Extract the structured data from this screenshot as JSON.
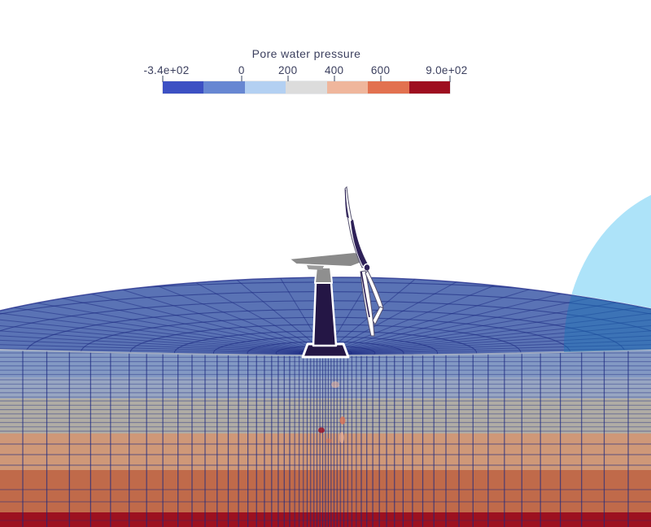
{
  "viewport": {
    "description": "3D finite-element model of a wind turbine on layered soil domain",
    "background_color": "#ffffff"
  },
  "colorbar": {
    "title": "Pore water pressure",
    "tick_labels": [
      "-3.4e+02",
      "0",
      "200",
      "400",
      "600",
      "9.0e+02"
    ],
    "tick_values": [
      -340,
      0,
      200,
      400,
      600,
      900
    ],
    "range": [
      -340,
      900
    ],
    "segments": [
      "#3c50c3",
      "#6787d2",
      "#b3d0f2",
      "#dcdcdc",
      "#efb69c",
      "#e2714f",
      "#9e0e20"
    ],
    "text_color": "#3b3f5e",
    "tick_color": "#9aa0ad"
  },
  "model": {
    "surface_color": "#5a73b5",
    "mesh_line_color": "#1b2880",
    "rim_line_color": "#aeb6c6",
    "layers": [
      {
        "name": "soil-layer-1a",
        "color": "#8399c4",
        "from": 431,
        "to": 464,
        "striped": true
      },
      {
        "name": "soil-layer-1b",
        "color": "#98a6c2",
        "from": 464,
        "to": 490,
        "striped": true
      },
      {
        "name": "soil-layer-2",
        "color": "#b1ada5",
        "from": 490,
        "to": 533,
        "striped": true
      },
      {
        "name": "soil-layer-3",
        "color": "#cf9878",
        "from": 533,
        "to": 578,
        "striped": false
      },
      {
        "name": "soil-layer-4",
        "color": "#c06a4a",
        "from": 578,
        "to": 630,
        "striped": false
      },
      {
        "name": "soil-layer-5",
        "color": "#9c1120",
        "from": 630,
        "to": 648,
        "striped": false
      }
    ],
    "dome": {
      "above_ground_color": "#a9e1f9",
      "submerged_tint_color": "#1873b8"
    },
    "turbine": {
      "tower_color": "#241645",
      "nacelle_color": "#8a8a8a",
      "step_color": "#9c9c9c",
      "blade_color": "#ffffff",
      "blade_accent_color": "#2e2158",
      "blade_edge_color": "#55516f",
      "outline_color": "#ffffff"
    }
  }
}
